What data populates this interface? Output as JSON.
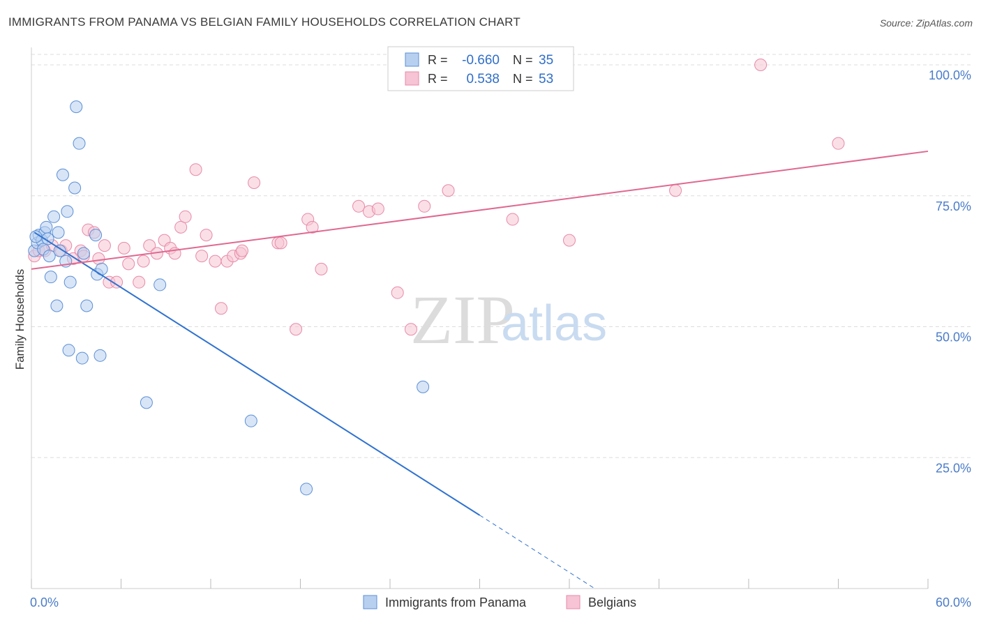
{
  "header": {
    "title": "IMMIGRANTS FROM PANAMA VS BELGIAN FAMILY HOUSEHOLDS CORRELATION CHART",
    "source": "Source: ZipAtlas.com"
  },
  "watermark": {
    "zip": "ZIP",
    "atlas": "atlas"
  },
  "colors": {
    "blue": "#5b8fd6",
    "blue_fill": "#b8d0f0",
    "blue_line": "#2f72d0",
    "pink": "#e88aa8",
    "pink_fill": "#f6c4d4",
    "pink_line": "#e06890",
    "grid": "#dddddd",
    "tick_text": "#4a7cc9"
  },
  "chart_data": {
    "type": "scatter",
    "title": "IMMIGRANTS FROM PANAMA VS BELGIAN FAMILY HOUSEHOLDS CORRELATION CHART",
    "xlabel": "",
    "ylabel": "Family Households",
    "xlim": [
      0,
      60
    ],
    "ylim": [
      0,
      102
    ],
    "x_tick_labels": [
      {
        "value": 0,
        "label": "0.0%"
      },
      {
        "value": 60,
        "label": "60.0%"
      }
    ],
    "y_tick_labels": [
      {
        "value": 25,
        "label": "25.0%"
      },
      {
        "value": 50,
        "label": "50.0%"
      },
      {
        "value": 75,
        "label": "75.0%"
      },
      {
        "value": 100,
        "label": "100.0%"
      }
    ],
    "legend": {
      "position": "top-center",
      "rows": [
        {
          "r_label": "R =",
          "r_value": "-0.660",
          "n_label": "N =",
          "n_value": "35"
        },
        {
          "r_label": "R =",
          "r_value": "0.538",
          "n_label": "N =",
          "n_value": "53"
        }
      ]
    },
    "bottom_legend": [
      "Immigrants from Panama",
      "Belgians"
    ],
    "series": [
      {
        "name": "Immigrants from Panama",
        "r": -0.66,
        "n": 35,
        "points": [
          [
            0.2,
            64.5
          ],
          [
            0.4,
            66.0
          ],
          [
            0.5,
            67.5
          ],
          [
            0.7,
            66.5
          ],
          [
            0.8,
            64.8
          ],
          [
            0.9,
            68.0
          ],
          [
            1.0,
            69.0
          ],
          [
            1.2,
            63.5
          ],
          [
            1.3,
            59.5
          ],
          [
            1.5,
            71.0
          ],
          [
            1.7,
            54.0
          ],
          [
            1.8,
            68.0
          ],
          [
            1.9,
            64.5
          ],
          [
            2.1,
            79.0
          ],
          [
            2.3,
            62.5
          ],
          [
            2.4,
            72.0
          ],
          [
            2.5,
            45.5
          ],
          [
            2.6,
            58.5
          ],
          [
            2.9,
            76.5
          ],
          [
            3.0,
            92.0
          ],
          [
            3.2,
            85.0
          ],
          [
            3.4,
            44.0
          ],
          [
            3.5,
            64.0
          ],
          [
            3.7,
            54.0
          ],
          [
            4.3,
            67.5
          ],
          [
            4.4,
            60.0
          ],
          [
            4.6,
            44.5
          ],
          [
            4.7,
            61.0
          ],
          [
            7.7,
            35.5
          ],
          [
            8.6,
            58.0
          ],
          [
            14.7,
            32.0
          ],
          [
            18.4,
            19.0
          ],
          [
            26.2,
            38.5
          ],
          [
            0.3,
            67.2
          ],
          [
            1.1,
            66.8
          ]
        ],
        "trend": {
          "x_start": 0.2,
          "y_start": 68.0,
          "x_solid_end": 30.0,
          "y_solid_end": 14.0,
          "x_dash_end": 37.7,
          "y_dash_end": 0.0
        }
      },
      {
        "name": "Belgians",
        "r": 0.538,
        "n": 53,
        "points": [
          [
            0.2,
            63.5
          ],
          [
            0.5,
            64.5
          ],
          [
            0.9,
            64.5
          ],
          [
            1.4,
            65.5
          ],
          [
            2.0,
            64.5
          ],
          [
            2.3,
            65.5
          ],
          [
            2.8,
            63.0
          ],
          [
            3.3,
            64.5
          ],
          [
            3.5,
            63.5
          ],
          [
            3.8,
            68.5
          ],
          [
            4.2,
            68.0
          ],
          [
            4.5,
            63.0
          ],
          [
            4.9,
            65.5
          ],
          [
            5.2,
            58.5
          ],
          [
            5.7,
            58.5
          ],
          [
            6.2,
            65.0
          ],
          [
            6.5,
            62.0
          ],
          [
            7.2,
            58.5
          ],
          [
            7.5,
            62.5
          ],
          [
            7.9,
            65.5
          ],
          [
            8.4,
            64.0
          ],
          [
            8.9,
            66.5
          ],
          [
            9.3,
            65.0
          ],
          [
            9.6,
            64.0
          ],
          [
            10.0,
            69.0
          ],
          [
            10.3,
            71.0
          ],
          [
            11.0,
            80.0
          ],
          [
            11.4,
            63.5
          ],
          [
            11.7,
            67.5
          ],
          [
            12.3,
            62.5
          ],
          [
            12.7,
            53.5
          ],
          [
            13.1,
            62.5
          ],
          [
            13.5,
            63.5
          ],
          [
            14.0,
            64.0
          ],
          [
            14.1,
            64.5
          ],
          [
            14.9,
            77.5
          ],
          [
            16.5,
            66.0
          ],
          [
            16.7,
            66.0
          ],
          [
            17.7,
            49.5
          ],
          [
            18.5,
            70.5
          ],
          [
            18.8,
            69.0
          ],
          [
            19.4,
            61.0
          ],
          [
            21.9,
            73.0
          ],
          [
            22.6,
            72.0
          ],
          [
            23.2,
            72.5
          ],
          [
            24.5,
            56.5
          ],
          [
            25.4,
            49.5
          ],
          [
            26.3,
            73.0
          ],
          [
            27.9,
            76.0
          ],
          [
            32.2,
            70.5
          ],
          [
            36.0,
            66.5
          ],
          [
            43.1,
            76.0
          ],
          [
            48.8,
            100.0
          ]
        ],
        "extra_points": [
          [
            54.0,
            85.0
          ]
        ],
        "trend": {
          "x_start": 0.0,
          "y_start": 61.0,
          "x_end": 60.0,
          "y_end": 83.5
        }
      }
    ]
  }
}
